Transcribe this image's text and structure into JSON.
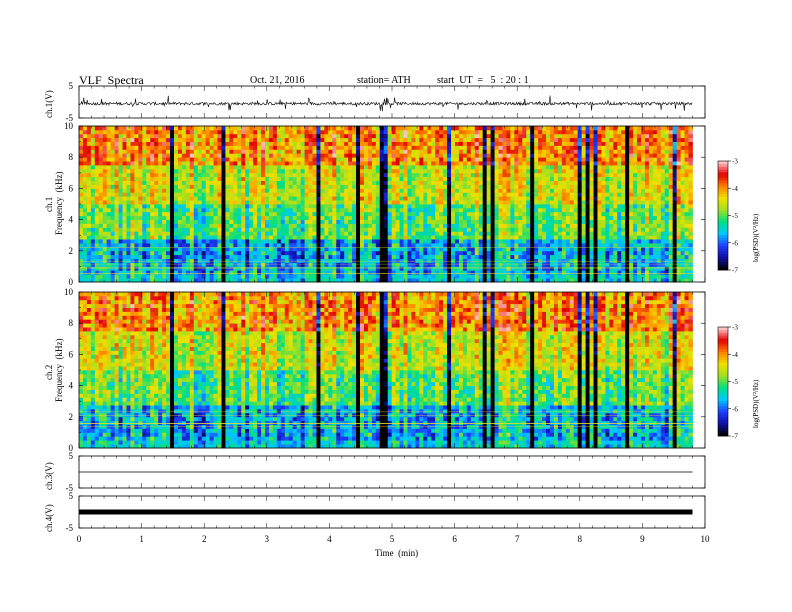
{
  "header": {
    "title": "VLF  Spectra",
    "date": "Oct. 21, 2016",
    "station": "station= ATH",
    "start_ut": "start  UT  =   5  : 20 : 1"
  },
  "chart_data": [
    {
      "type": "line",
      "title": "VLF  Spectra",
      "ylabel": "ch.1(V)",
      "ylim": [
        -5,
        5
      ],
      "yticks": [
        "5",
        "-5"
      ],
      "xlim": [
        0,
        10
      ],
      "description_level": "noisy signal near 0 V"
    },
    {
      "type": "heatmap",
      "panel_label": "ch.1",
      "ylabel": "Frequency  (kHz)",
      "ylim": [
        0,
        10
      ],
      "yticks": [
        "0",
        "2",
        "4",
        "6",
        "8",
        "10"
      ],
      "xlim": [
        0,
        10
      ],
      "colorbar": {
        "label": "log(PSD)(V²/Hz)",
        "range": [
          -7,
          -3
        ],
        "ticks": [
          "-3",
          "-4",
          "-5",
          "-6",
          "-7"
        ]
      }
    },
    {
      "type": "heatmap",
      "panel_label": "ch.2",
      "ylabel": "Frequency  (kHz)",
      "ylim": [
        0,
        10
      ],
      "yticks": [
        "0",
        "2",
        "4",
        "6",
        "8",
        "10"
      ],
      "xlim": [
        0,
        10
      ],
      "colorbar": {
        "label": "log(PSD)(V²/Hz)",
        "range": [
          -7,
          -3
        ],
        "ticks": [
          "-3",
          "-4",
          "-5",
          "-6",
          "-7"
        ]
      }
    },
    {
      "type": "line",
      "ylabel": "ch.3(V)",
      "ylim": [
        -5,
        5
      ],
      "yticks": [
        "5",
        "-5"
      ],
      "xlim": [
        0,
        10
      ]
    },
    {
      "type": "line",
      "ylabel": "ch.4(V)",
      "ylim": [
        -5,
        5
      ],
      "yticks": [
        "5",
        "-5"
      ],
      "xlim": [
        0,
        10
      ]
    }
  ],
  "xaxis": {
    "label": "Time  (min)",
    "ticks": [
      "0",
      "1",
      "2",
      "3",
      "4",
      "5",
      "6",
      "7",
      "8",
      "9",
      "10"
    ]
  },
  "colors": {
    "scale": [
      "#000000",
      "#1010a8",
      "#1e40ff",
      "#00c8ff",
      "#00e080",
      "#a0e020",
      "#f0e000",
      "#ff8000",
      "#e00000",
      "#ffc0c0"
    ],
    "axis": "#000000"
  }
}
